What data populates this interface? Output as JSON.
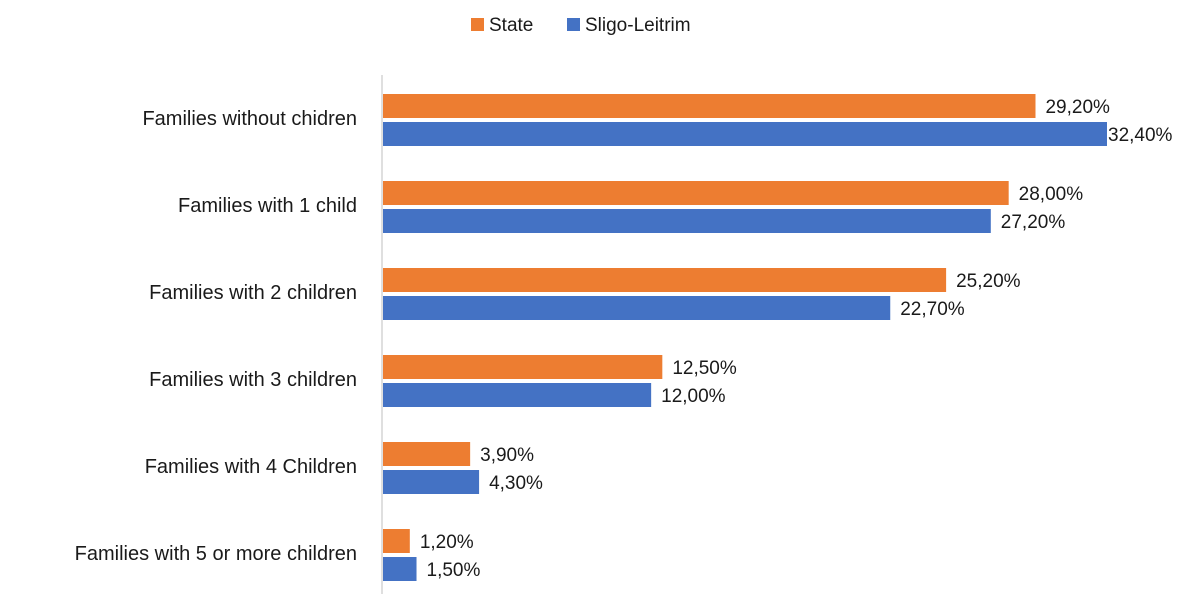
{
  "chart_data": {
    "type": "bar",
    "orientation": "horizontal",
    "categories": [
      "Families without chidren",
      "Families with 1 child",
      "Families with 2 children",
      "Families with 3 children",
      "Families with 4 Children",
      "Families with 5 or more children"
    ],
    "series": [
      {
        "name": "State",
        "color": "#ED7D31",
        "values": [
          29.2,
          28.0,
          25.2,
          12.5,
          3.9,
          1.2
        ],
        "labels": [
          "29,20%",
          "28,00%",
          "25,20%",
          "12,50%",
          "3,90%",
          "1,20%"
        ]
      },
      {
        "name": "Sligo-Leitrim",
        "color": "#4472C4",
        "values": [
          32.4,
          27.2,
          22.7,
          12.0,
          4.3,
          1.5
        ],
        "labels": [
          "32,40%",
          "27,20%",
          "22,70%",
          "12,00%",
          "4,30%",
          "1,50%"
        ]
      }
    ],
    "legend_position": "top",
    "grid": false,
    "xlim": [
      0,
      32.4
    ]
  }
}
